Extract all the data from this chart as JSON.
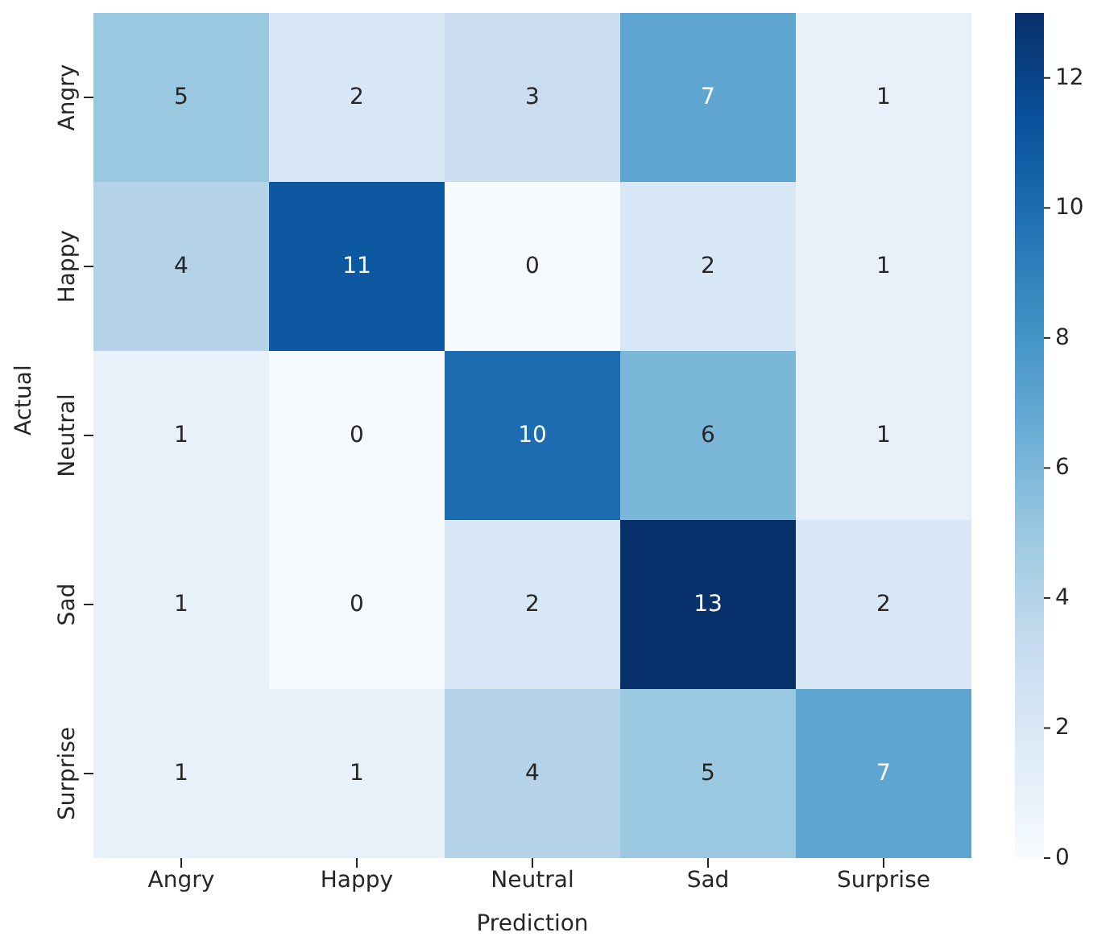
{
  "chart_data": {
    "type": "heatmap",
    "xlabel": "Prediction",
    "ylabel": "Actual",
    "categories": [
      "Angry",
      "Happy",
      "Neutral",
      "Sad",
      "Surprise"
    ],
    "y_categories": [
      "Angry",
      "Happy",
      "Neutral",
      "Sad",
      "Surprise"
    ],
    "cells": [
      [
        5,
        2,
        3,
        7,
        1
      ],
      [
        4,
        11,
        0,
        2,
        1
      ],
      [
        1,
        0,
        10,
        6,
        1
      ],
      [
        1,
        0,
        2,
        13,
        2
      ],
      [
        1,
        1,
        4,
        5,
        7
      ]
    ],
    "clim": [
      0,
      13
    ],
    "cticks": [
      0,
      2,
      4,
      6,
      8,
      10,
      12
    ],
    "data_labels": true
  }
}
